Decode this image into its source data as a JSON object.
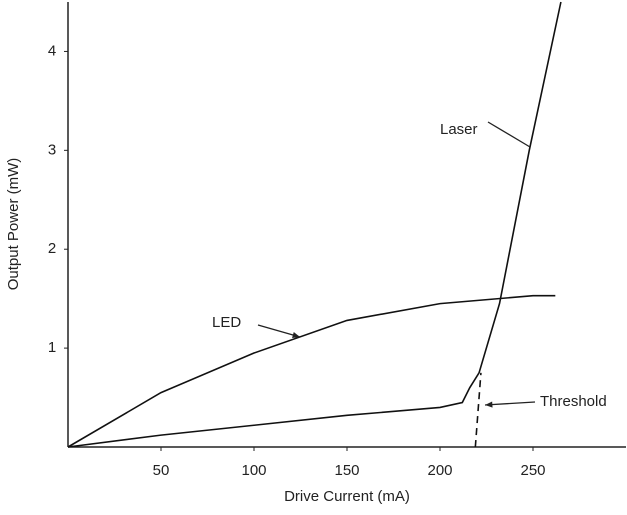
{
  "chart_data": {
    "type": "line",
    "x_label": "Drive Current (mA)",
    "y_label": "Output Power (mW)",
    "xlim": [
      0,
      300
    ],
    "xticks": [
      50,
      100,
      150,
      200,
      250
    ],
    "ylim": [
      0,
      4.5
    ],
    "yticks": [
      1,
      2,
      3,
      4
    ],
    "grid": false,
    "series": [
      {
        "name": "Laser",
        "color": "#111111",
        "style": "solid",
        "x": [
          0,
          50,
          100,
          150,
          200,
          212,
          216,
          221,
          232,
          248,
          265
        ],
        "values": [
          0,
          0.12,
          0.22,
          0.32,
          0.4,
          0.45,
          0.6,
          0.75,
          1.45,
          3.0,
          4.5
        ]
      },
      {
        "name": "LED",
        "color": "#111111",
        "style": "solid",
        "x": [
          0,
          50,
          100,
          150,
          200,
          250,
          262
        ],
        "values": [
          0,
          0.55,
          0.95,
          1.28,
          1.45,
          1.53,
          1.53
        ]
      },
      {
        "name": "Threshold",
        "color": "#111111",
        "style": "dashed",
        "x": [
          219,
          222
        ],
        "values": [
          0,
          0.75
        ]
      }
    ]
  }
}
